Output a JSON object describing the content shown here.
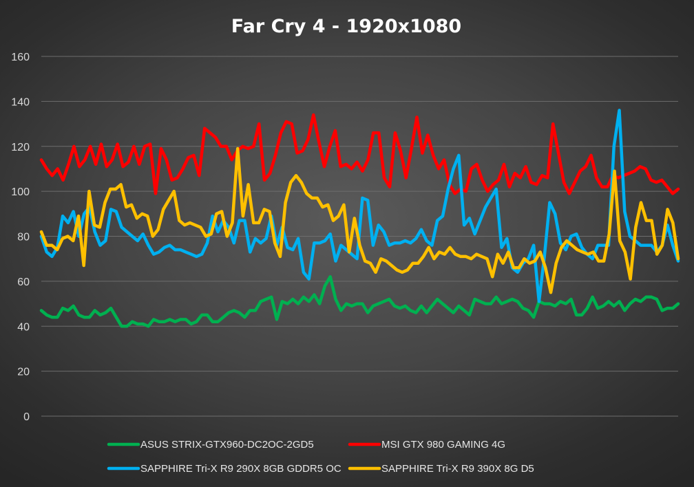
{
  "chart_data": {
    "type": "line",
    "title": "Far Cry 4 - 1920x1080",
    "xlabel": "",
    "ylabel": "",
    "ylim": [
      0,
      160
    ],
    "yticks": [
      0,
      20,
      40,
      60,
      80,
      100,
      120,
      140,
      160
    ],
    "grid": true,
    "legend_position": "bottom",
    "series": [
      {
        "name": "ASUS STRIX-GTX960-DC2OC-2GD5",
        "color": "#00b050",
        "values": [
          47,
          45,
          44,
          44,
          48,
          47,
          49,
          45,
          44,
          44,
          47,
          45,
          46,
          48,
          44,
          40,
          40,
          42,
          41,
          41,
          40,
          43,
          42,
          42,
          43,
          42,
          43,
          43,
          41,
          42,
          45,
          45,
          42,
          42,
          44,
          46,
          47,
          46,
          44,
          47,
          47,
          51,
          52,
          53,
          43,
          51,
          50,
          52,
          50,
          53,
          51,
          54,
          50,
          58,
          62,
          52,
          47,
          50,
          49,
          50,
          50,
          46,
          49,
          50,
          51,
          52,
          49,
          48,
          49,
          47,
          46,
          49,
          46,
          49,
          52,
          50,
          48,
          46,
          49,
          47,
          45,
          52,
          51,
          50,
          50,
          53,
          50,
          51,
          52,
          51,
          48,
          47,
          44,
          51,
          50,
          50,
          49,
          51,
          50,
          52,
          45,
          45,
          48,
          53,
          48,
          49,
          51,
          49,
          51,
          47,
          50,
          52,
          51,
          53,
          53,
          52,
          47,
          48,
          48,
          50
        ]
      },
      {
        "name": "MSI GTX 980 GAMING 4G",
        "color": "#ff0000",
        "values": [
          114,
          110,
          107,
          110,
          105,
          112,
          120,
          111,
          114,
          120,
          112,
          121,
          111,
          114,
          121,
          111,
          113,
          120,
          112,
          120,
          121,
          99,
          119,
          114,
          105,
          106,
          110,
          115,
          116,
          107,
          128,
          126,
          124,
          120,
          120,
          114,
          118,
          120,
          119,
          120,
          130,
          105,
          108,
          116,
          126,
          131,
          130,
          117,
          118,
          123,
          134,
          122,
          111,
          120,
          127,
          111,
          112,
          110,
          113,
          109,
          114,
          126,
          126,
          106,
          102,
          126,
          118,
          106,
          119,
          133,
          117,
          125,
          116,
          110,
          114,
          103,
          99,
          101,
          100,
          110,
          112,
          105,
          100,
          103,
          105,
          112,
          102,
          108,
          106,
          111,
          104,
          103,
          107,
          106,
          130,
          117,
          104,
          99,
          104,
          109,
          111,
          116,
          106,
          102,
          102,
          107,
          106,
          107,
          108,
          109,
          111,
          110,
          105,
          104,
          105,
          102,
          99,
          101
        ]
      },
      {
        "name": "SAPPHIRE Tri-X R9 290X 8GB GDDR5 OC",
        "color": "#00b0f0",
        "values": [
          80,
          73,
          71,
          75,
          89,
          86,
          91,
          80,
          90,
          93,
          82,
          76,
          78,
          92,
          91,
          84,
          82,
          80,
          78,
          81,
          76,
          72,
          73,
          75,
          76,
          74,
          74,
          73,
          72,
          71,
          72,
          77,
          89,
          82,
          87,
          84,
          77,
          87,
          87,
          73,
          79,
          77,
          79,
          89,
          76,
          84,
          75,
          74,
          79,
          64,
          61,
          77,
          77,
          78,
          81,
          69,
          76,
          74,
          72,
          70,
          97,
          96,
          76,
          85,
          82,
          76,
          77,
          77,
          78,
          77,
          79,
          83,
          78,
          76,
          87,
          89,
          101,
          110,
          116,
          85,
          88,
          81,
          87,
          93,
          97,
          101,
          75,
          79,
          66,
          64,
          68,
          70,
          76,
          51,
          71,
          95,
          90,
          77,
          74,
          80,
          81,
          75,
          72,
          70,
          76,
          76,
          76,
          120,
          136,
          91,
          80,
          78,
          76,
          76,
          76,
          73,
          76,
          85,
          76,
          69
        ]
      },
      {
        "name": "SAPPHIRE Tri-X R9 390X 8G D5",
        "color": "#ffc000",
        "values": [
          82,
          76,
          76,
          74,
          79,
          80,
          78,
          89,
          67,
          100,
          85,
          84,
          95,
          101,
          101,
          103,
          93,
          94,
          88,
          90,
          89,
          80,
          83,
          92,
          96,
          100,
          87,
          85,
          86,
          85,
          84,
          80,
          81,
          90,
          91,
          80,
          86,
          119,
          89,
          103,
          86,
          86,
          92,
          91,
          77,
          71,
          95,
          104,
          107,
          104,
          99,
          97,
          97,
          93,
          94,
          87,
          89,
          94,
          73,
          88,
          76,
          69,
          68,
          64,
          70,
          69,
          67,
          65,
          64,
          65,
          68,
          68,
          71,
          75,
          70,
          73,
          72,
          75,
          72,
          71,
          71,
          70,
          72,
          71,
          70,
          62,
          72,
          68,
          73,
          66,
          66,
          70,
          68,
          69,
          73,
          66,
          55,
          68,
          75,
          78,
          76,
          74,
          73,
          72,
          73,
          69,
          69,
          81,
          109,
          78,
          73,
          61,
          84,
          95,
          87,
          87,
          72,
          76,
          92,
          86,
          70
        ]
      }
    ]
  }
}
